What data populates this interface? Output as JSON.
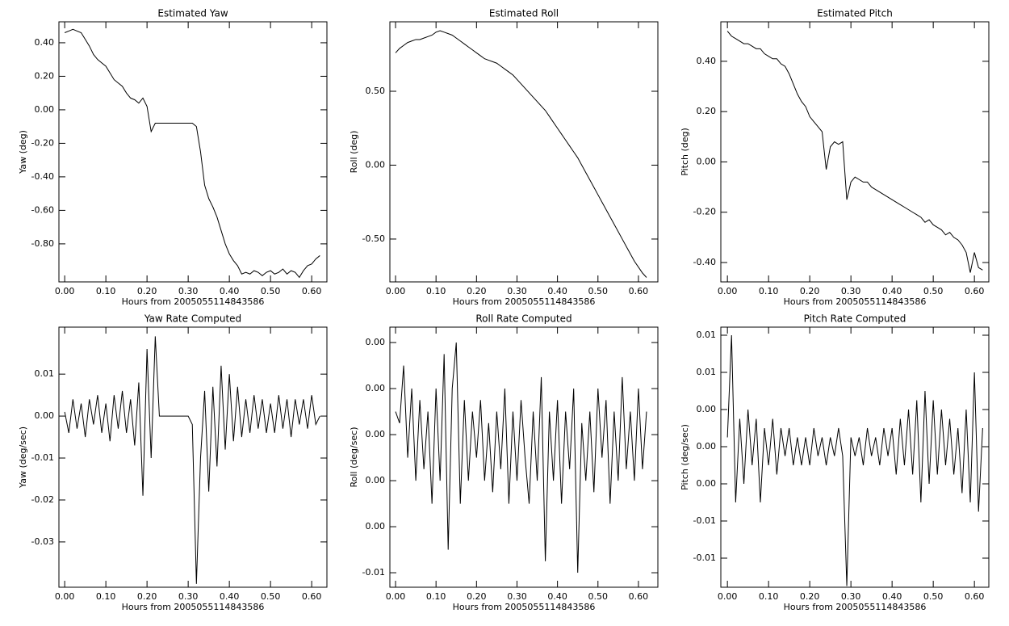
{
  "chart_data": [
    {
      "type": "line",
      "title": "Estimated Yaw",
      "xlabel": "Hours from 2005055114843586",
      "ylabel": "Yaw (deg)",
      "color": "#000000",
      "x": [
        0,
        0.01,
        0.02,
        0.03,
        0.04,
        0.05,
        0.06,
        0.07,
        0.08,
        0.09,
        0.1,
        0.11,
        0.12,
        0.13,
        0.14,
        0.15,
        0.16,
        0.17,
        0.18,
        0.19,
        0.2,
        0.21,
        0.22,
        0.23,
        0.24,
        0.25,
        0.26,
        0.27,
        0.28,
        0.29,
        0.3,
        0.31,
        0.32,
        0.33,
        0.34,
        0.35,
        0.36,
        0.37,
        0.38,
        0.39,
        0.4,
        0.41,
        0.42,
        0.43,
        0.44,
        0.45,
        0.46,
        0.47,
        0.48,
        0.49,
        0.5,
        0.51,
        0.52,
        0.53,
        0.54,
        0.55,
        0.56,
        0.57,
        0.58,
        0.59,
        0.6,
        0.61,
        0.62
      ],
      "values": [
        0.46,
        0.47,
        0.48,
        0.47,
        0.46,
        0.42,
        0.38,
        0.33,
        0.3,
        0.28,
        0.26,
        0.22,
        0.18,
        0.16,
        0.14,
        0.1,
        0.07,
        0.06,
        0.04,
        0.07,
        0.02,
        -0.13,
        -0.08,
        -0.08,
        -0.08,
        -0.08,
        -0.08,
        -0.08,
        -0.08,
        -0.08,
        -0.08,
        -0.08,
        -0.1,
        -0.25,
        -0.45,
        -0.53,
        -0.58,
        -0.64,
        -0.72,
        -0.8,
        -0.86,
        -0.9,
        -0.93,
        -0.98,
        -0.97,
        -0.98,
        -0.96,
        -0.97,
        -0.99,
        -0.97,
        -0.96,
        -0.98,
        -0.97,
        -0.95,
        -0.98,
        -0.96,
        -0.97,
        -1.0,
        -0.96,
        -0.93,
        -0.92,
        -0.89,
        -0.87
      ],
      "xlim": [
        -0.014,
        0.637
      ],
      "ylim": [
        -1.027,
        0.525
      ],
      "xticks": [
        {
          "value": 0,
          "label": "0.00"
        },
        {
          "value": 0.1,
          "label": "0.10"
        },
        {
          "value": 0.2,
          "label": "0.20"
        },
        {
          "value": 0.3,
          "label": "0.30"
        },
        {
          "value": 0.4,
          "label": "0.40"
        },
        {
          "value": 0.5,
          "label": "0.50"
        },
        {
          "value": 0.6,
          "label": "0.60"
        }
      ],
      "yticks": [
        {
          "value": 0.4,
          "label": "0.40"
        },
        {
          "value": 0.2,
          "label": "0.20"
        },
        {
          "value": 0,
          "label": "0.00"
        },
        {
          "value": -0.2,
          "label": "-0.20"
        },
        {
          "value": -0.4,
          "label": "-0.40"
        },
        {
          "value": -0.6,
          "label": "-0.60"
        },
        {
          "value": -0.8,
          "label": "-0.80"
        }
      ]
    },
    {
      "type": "line",
      "title": "Estimated Roll",
      "xlabel": "Hours from 2005055114843586",
      "ylabel": "Roll (deg)",
      "color": "#000000",
      "x": [
        0,
        0.01,
        0.02,
        0.03,
        0.04,
        0.05,
        0.06,
        0.07,
        0.08,
        0.09,
        0.1,
        0.11,
        0.12,
        0.13,
        0.14,
        0.15,
        0.16,
        0.17,
        0.18,
        0.19,
        0.2,
        0.21,
        0.22,
        0.23,
        0.24,
        0.25,
        0.26,
        0.27,
        0.28,
        0.29,
        0.3,
        0.31,
        0.32,
        0.33,
        0.34,
        0.35,
        0.36,
        0.37,
        0.38,
        0.39,
        0.4,
        0.41,
        0.42,
        0.43,
        0.44,
        0.45,
        0.46,
        0.47,
        0.48,
        0.49,
        0.5,
        0.51,
        0.52,
        0.53,
        0.54,
        0.55,
        0.56,
        0.57,
        0.58,
        0.59,
        0.6,
        0.61,
        0.62
      ],
      "values": [
        0.76,
        0.79,
        0.81,
        0.83,
        0.84,
        0.85,
        0.85,
        0.86,
        0.87,
        0.88,
        0.9,
        0.91,
        0.9,
        0.89,
        0.88,
        0.86,
        0.84,
        0.82,
        0.8,
        0.78,
        0.76,
        0.74,
        0.72,
        0.71,
        0.7,
        0.69,
        0.67,
        0.65,
        0.63,
        0.61,
        0.58,
        0.55,
        0.52,
        0.49,
        0.46,
        0.43,
        0.4,
        0.37,
        0.33,
        0.29,
        0.25,
        0.21,
        0.17,
        0.13,
        0.09,
        0.05,
        0.0,
        -0.05,
        -0.1,
        -0.15,
        -0.2,
        -0.25,
        -0.3,
        -0.35,
        -0.4,
        -0.45,
        -0.5,
        -0.55,
        -0.6,
        -0.65,
        -0.69,
        -0.73,
        -0.76
      ],
      "xlim": [
        -0.014,
        0.648
      ],
      "ylim": [
        -0.79,
        0.97
      ],
      "xticks": [
        {
          "value": 0,
          "label": "0.00"
        },
        {
          "value": 0.1,
          "label": "0.10"
        },
        {
          "value": 0.2,
          "label": "0.20"
        },
        {
          "value": 0.3,
          "label": "0.30"
        },
        {
          "value": 0.4,
          "label": "0.40"
        },
        {
          "value": 0.5,
          "label": "0.50"
        },
        {
          "value": 0.6,
          "label": "0.60"
        }
      ],
      "yticks": [
        {
          "value": 0.5,
          "label": "0.50"
        },
        {
          "value": 0,
          "label": "0.00"
        },
        {
          "value": -0.5,
          "label": "-0.50"
        }
      ]
    },
    {
      "type": "line",
      "title": "Estimated Pitch",
      "xlabel": "Hours from 2005055114843586",
      "ylabel": "Pitch (deg)",
      "color": "#000000",
      "x": [
        0,
        0.01,
        0.02,
        0.03,
        0.04,
        0.05,
        0.06,
        0.07,
        0.08,
        0.09,
        0.1,
        0.11,
        0.12,
        0.13,
        0.14,
        0.15,
        0.16,
        0.17,
        0.18,
        0.19,
        0.2,
        0.21,
        0.22,
        0.23,
        0.24,
        0.25,
        0.26,
        0.27,
        0.28,
        0.29,
        0.3,
        0.31,
        0.32,
        0.33,
        0.34,
        0.35,
        0.36,
        0.37,
        0.38,
        0.39,
        0.4,
        0.41,
        0.42,
        0.43,
        0.44,
        0.45,
        0.46,
        0.47,
        0.48,
        0.49,
        0.5,
        0.51,
        0.52,
        0.53,
        0.54,
        0.55,
        0.56,
        0.57,
        0.58,
        0.59,
        0.6,
        0.61,
        0.62
      ],
      "values": [
        0.52,
        0.5,
        0.49,
        0.48,
        0.47,
        0.47,
        0.46,
        0.45,
        0.45,
        0.43,
        0.42,
        0.41,
        0.41,
        0.39,
        0.38,
        0.35,
        0.31,
        0.27,
        0.24,
        0.22,
        0.18,
        0.16,
        0.14,
        0.12,
        -0.03,
        0.06,
        0.08,
        0.07,
        0.08,
        -0.15,
        -0.08,
        -0.06,
        -0.07,
        -0.08,
        -0.08,
        -0.1,
        -0.11,
        -0.12,
        -0.13,
        -0.14,
        -0.15,
        -0.16,
        -0.17,
        -0.18,
        -0.19,
        -0.2,
        -0.21,
        -0.22,
        -0.24,
        -0.23,
        -0.25,
        -0.26,
        -0.27,
        -0.29,
        -0.28,
        -0.3,
        -0.31,
        -0.33,
        -0.36,
        -0.44,
        -0.36,
        -0.42,
        -0.43
      ],
      "xlim": [
        -0.016,
        0.635
      ],
      "ylim": [
        -0.477,
        0.557
      ],
      "xticks": [
        {
          "value": 0,
          "label": "0.00"
        },
        {
          "value": 0.1,
          "label": "0.10"
        },
        {
          "value": 0.2,
          "label": "0.20"
        },
        {
          "value": 0.3,
          "label": "0.30"
        },
        {
          "value": 0.4,
          "label": "0.40"
        },
        {
          "value": 0.5,
          "label": "0.50"
        },
        {
          "value": 0.6,
          "label": "0.60"
        }
      ],
      "yticks": [
        {
          "value": 0.4,
          "label": "0.40"
        },
        {
          "value": 0.2,
          "label": "0.20"
        },
        {
          "value": 0,
          "label": "0.00"
        },
        {
          "value": -0.2,
          "label": "-0.20"
        },
        {
          "value": -0.4,
          "label": "-0.40"
        }
      ]
    },
    {
      "type": "line",
      "title": "Yaw Rate Computed",
      "xlabel": "Hours from 2005055114843586",
      "ylabel": "Yaw (deg/sec)",
      "color": "#000000",
      "x": [
        0,
        0.01,
        0.02,
        0.03,
        0.04,
        0.05,
        0.06,
        0.07,
        0.08,
        0.09,
        0.1,
        0.11,
        0.12,
        0.13,
        0.14,
        0.15,
        0.16,
        0.17,
        0.18,
        0.19,
        0.2,
        0.21,
        0.22,
        0.23,
        0.24,
        0.25,
        0.26,
        0.27,
        0.28,
        0.29,
        0.3,
        0.31,
        0.32,
        0.33,
        0.34,
        0.35,
        0.36,
        0.37,
        0.38,
        0.39,
        0.4,
        0.41,
        0.42,
        0.43,
        0.44,
        0.45,
        0.46,
        0.47,
        0.48,
        0.49,
        0.5,
        0.51,
        0.52,
        0.53,
        0.54,
        0.55,
        0.56,
        0.57,
        0.58,
        0.59,
        0.6,
        0.61,
        0.62
      ],
      "values": [
        0.001,
        -0.004,
        0.004,
        -0.003,
        0.003,
        -0.005,
        0.004,
        -0.002,
        0.005,
        -0.004,
        0.003,
        -0.006,
        0.005,
        -0.003,
        0.006,
        -0.004,
        0.004,
        -0.007,
        0.008,
        -0.019,
        0.016,
        -0.01,
        0.019,
        0.0,
        0.0,
        0.0,
        0.0,
        0.0,
        0.0,
        0.0,
        0.0,
        -0.002,
        -0.04,
        -0.01,
        0.006,
        -0.018,
        0.007,
        -0.012,
        0.012,
        -0.008,
        0.01,
        -0.006,
        0.007,
        -0.005,
        0.004,
        -0.004,
        0.005,
        -0.003,
        0.004,
        -0.004,
        0.003,
        -0.004,
        0.005,
        -0.003,
        0.004,
        -0.005,
        0.004,
        -0.002,
        0.004,
        -0.003,
        0.005,
        -0.002,
        0.0
      ],
      "xlim": [
        -0.014,
        0.637
      ],
      "ylim": [
        -0.0408,
        0.0212
      ],
      "xticks": [
        {
          "value": 0,
          "label": "0.00"
        },
        {
          "value": 0.1,
          "label": "0.10"
        },
        {
          "value": 0.2,
          "label": "0.20"
        },
        {
          "value": 0.3,
          "label": "0.30"
        },
        {
          "value": 0.4,
          "label": "0.40"
        },
        {
          "value": 0.5,
          "label": "0.50"
        },
        {
          "value": 0.6,
          "label": "0.60"
        }
      ],
      "yticks": [
        0.01,
        {
          "value": 0,
          "label": "0.00"
        },
        -0.01,
        -0.02,
        -0.03
      ]
    },
    {
      "type": "line",
      "title": "Roll Rate Computed",
      "xlabel": "Hours from 2005055114843586",
      "ylabel": "Roll (deg/sec)",
      "color": "#000000",
      "x": [
        0,
        0.01,
        0.02,
        0.03,
        0.04,
        0.05,
        0.06,
        0.07,
        0.08,
        0.09,
        0.1,
        0.11,
        0.12,
        0.13,
        0.14,
        0.15,
        0.16,
        0.17,
        0.18,
        0.19,
        0.2,
        0.21,
        0.22,
        0.23,
        0.24,
        0.25,
        0.26,
        0.27,
        0.28,
        0.29,
        0.3,
        0.31,
        0.32,
        0.33,
        0.34,
        0.35,
        0.36,
        0.37,
        0.38,
        0.39,
        0.4,
        0.41,
        0.42,
        0.43,
        0.44,
        0.45,
        0.46,
        0.47,
        0.48,
        0.49,
        0.5,
        0.51,
        0.52,
        0.53,
        0.54,
        0.55,
        0.56,
        0.57,
        0.58,
        0.59,
        0.6,
        0.61,
        0.62
      ],
      "values": [
        0.001,
        0.0005,
        0.003,
        -0.001,
        0.002,
        -0.002,
        0.0015,
        -0.0015,
        0.001,
        -0.003,
        0.002,
        -0.002,
        0.0035,
        -0.005,
        0.002,
        0.004,
        -0.003,
        0.0015,
        -0.002,
        0.001,
        -0.001,
        0.0015,
        -0.002,
        0.0005,
        -0.0025,
        0.001,
        -0.0015,
        0.002,
        -0.003,
        0.001,
        -0.002,
        0.0015,
        -0.001,
        -0.003,
        0.001,
        -0.002,
        0.0025,
        -0.0055,
        0.001,
        -0.002,
        0.0015,
        -0.003,
        0.001,
        -0.0015,
        0.002,
        -0.006,
        0.0005,
        -0.002,
        0.001,
        -0.0025,
        0.002,
        -0.001,
        0.0015,
        -0.003,
        0.001,
        -0.002,
        0.0025,
        -0.0015,
        0.001,
        -0.002,
        0.002,
        -0.0015,
        0.001
      ],
      "xlim": [
        -0.014,
        0.648
      ],
      "ylim": [
        -0.00663,
        0.00467
      ],
      "xticks": [
        {
          "value": 0,
          "label": "0.00"
        },
        {
          "value": 0.1,
          "label": "0.10"
        },
        {
          "value": 0.2,
          "label": "0.20"
        },
        {
          "value": 0.3,
          "label": "0.30"
        },
        {
          "value": 0.4,
          "label": "0.40"
        },
        {
          "value": 0.5,
          "label": "0.50"
        },
        {
          "value": 0.6,
          "label": "0.60"
        }
      ],
      "yticks": [
        {
          "value": 0.004,
          "label": "0.00"
        },
        {
          "value": 0.002,
          "label": "0.00"
        },
        {
          "value": 0,
          "label": "0.00"
        },
        {
          "value": -0.002,
          "label": "0.00"
        },
        {
          "value": -0.004,
          "label": "0.00"
        },
        {
          "value": -0.006,
          "label": "-0.01"
        }
      ]
    },
    {
      "type": "line",
      "title": "Pitch Rate Computed",
      "xlabel": "Hours from 2005055114843586",
      "ylabel": "Pitch (deg/sec)",
      "color": "#000000",
      "x": [
        0,
        0.01,
        0.02,
        0.03,
        0.04,
        0.05,
        0.06,
        0.07,
        0.08,
        0.09,
        0.1,
        0.11,
        0.12,
        0.13,
        0.14,
        0.15,
        0.16,
        0.17,
        0.18,
        0.19,
        0.2,
        0.21,
        0.22,
        0.23,
        0.24,
        0.25,
        0.26,
        0.27,
        0.28,
        0.29,
        0.3,
        0.31,
        0.32,
        0.33,
        0.34,
        0.35,
        0.36,
        0.37,
        0.38,
        0.39,
        0.4,
        0.41,
        0.42,
        0.43,
        0.44,
        0.45,
        0.46,
        0.47,
        0.48,
        0.49,
        0.5,
        0.51,
        0.52,
        0.53,
        0.54,
        0.55,
        0.56,
        0.57,
        0.58,
        0.59,
        0.6,
        0.61,
        0.62
      ],
      "values": [
        0.001,
        0.012,
        -0.006,
        0.003,
        -0.004,
        0.004,
        -0.002,
        0.003,
        -0.006,
        0.002,
        -0.002,
        0.003,
        -0.003,
        0.002,
        -0.001,
        0.002,
        -0.002,
        0.001,
        -0.002,
        0.001,
        -0.002,
        0.002,
        -0.001,
        0.001,
        -0.002,
        0.001,
        -0.001,
        0.002,
        -0.001,
        -0.015,
        0.001,
        -0.001,
        0.001,
        -0.002,
        0.002,
        -0.001,
        0.001,
        -0.002,
        0.002,
        -0.001,
        0.002,
        -0.003,
        0.003,
        -0.002,
        0.004,
        -0.003,
        0.005,
        -0.006,
        0.006,
        -0.004,
        0.005,
        -0.003,
        0.004,
        -0.002,
        0.003,
        -0.003,
        0.002,
        -0.005,
        0.004,
        -0.006,
        0.008,
        -0.007,
        0.002
      ],
      "xlim": [
        -0.016,
        0.635
      ],
      "ylim": [
        -0.01513,
        0.01287
      ],
      "xticks": [
        {
          "value": 0,
          "label": "0.00"
        },
        {
          "value": 0.1,
          "label": "0.10"
        },
        {
          "value": 0.2,
          "label": "0.20"
        },
        {
          "value": 0.3,
          "label": "0.30"
        },
        {
          "value": 0.4,
          "label": "0.40"
        },
        {
          "value": 0.5,
          "label": "0.50"
        },
        {
          "value": 0.6,
          "label": "0.60"
        }
      ],
      "yticks": [
        {
          "value": 0.012,
          "label": "0.01"
        },
        {
          "value": 0.008,
          "label": "0.01"
        },
        {
          "value": 0.004,
          "label": "0.00"
        },
        {
          "value": 0,
          "label": "0.00"
        },
        {
          "value": -0.004,
          "label": "0.00"
        },
        {
          "value": -0.008,
          "label": "-0.01"
        },
        {
          "value": -0.012,
          "label": "-0.01"
        }
      ]
    }
  ]
}
